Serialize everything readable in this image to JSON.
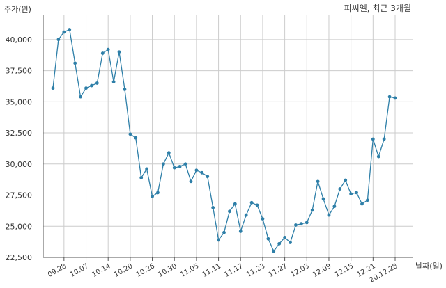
{
  "chart_data": {
    "type": "line",
    "title": "피씨엘, 최근 3개월",
    "ylabel": "주가(원)",
    "xlabel": "날짜(일)",
    "ylim": [
      22500,
      41500
    ],
    "yticks": [
      22500,
      25000,
      27500,
      30000,
      32500,
      35000,
      37500,
      40000
    ],
    "ytick_labels": [
      "22,500",
      "25,000",
      "27,500",
      "30,000",
      "32,500",
      "35,000",
      "37,500",
      "40,000"
    ],
    "xticks": [
      "09.28",
      "10.07",
      "10.14",
      "10.20",
      "10.26",
      "10.30",
      "11.05",
      "11.11",
      "11.17",
      "11.23",
      "11.27",
      "12.03",
      "12.09",
      "12.15",
      "12.21",
      "20.12.28"
    ],
    "grid": true,
    "colors": {
      "line": "#2e7fa8",
      "grid": "#cccccc",
      "axis": "#555555"
    },
    "series": [
      {
        "values": [
          36100,
          40000,
          40600,
          40800,
          38100,
          35400,
          36100,
          36300,
          36500,
          38900,
          39200,
          36600,
          39000,
          36000,
          32400,
          32100,
          28900,
          29600,
          27400,
          27700,
          30000,
          30900,
          29700,
          29800,
          30000,
          28600,
          29500,
          29300,
          29000,
          26500,
          23900,
          24500,
          26200,
          26800,
          24600,
          25900,
          26900,
          26700,
          25600,
          24000,
          23000,
          23600,
          24100,
          23700,
          25100,
          25200,
          25300,
          26300,
          28600,
          27200,
          25900,
          26600,
          28000,
          28700,
          27600,
          27700,
          26800,
          27100,
          32000,
          30600,
          32000,
          35400,
          35300
        ]
      }
    ]
  }
}
